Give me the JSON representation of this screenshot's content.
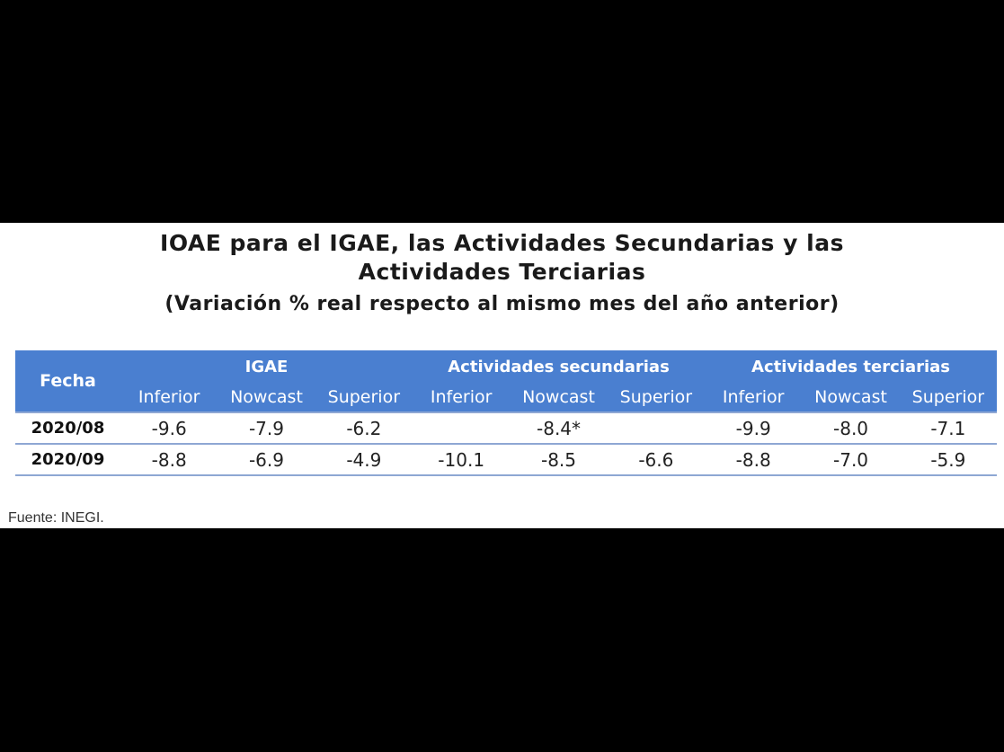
{
  "title": {
    "line1": "IOAE para el IGAE, las Actividades Secundarias y las",
    "line2": "Actividades Terciarias",
    "subtitle": "(Variación % real respecto al mismo mes del año anterior)"
  },
  "table": {
    "date_header": "Fecha",
    "groups": [
      "IGAE",
      "Actividades secundarias",
      "Actividades terciarias"
    ],
    "subcolumns": [
      "Inferior",
      "Nowcast",
      "Superior",
      "Inferior",
      "Nowcast",
      "Superior",
      "Inferior",
      "Nowcast",
      "Superior"
    ],
    "rows": [
      {
        "date": "2020/08",
        "igae": [
          "-9.6",
          "-7.9",
          "-6.2"
        ],
        "secundarias_combined": "-8.4*",
        "terciarias": [
          "-9.9",
          "-8.0",
          "-7.1"
        ]
      },
      {
        "date": "2020/09",
        "igae": [
          "-8.8",
          "-6.9",
          "-4.9"
        ],
        "secundarias": [
          "-10.1",
          "-8.5",
          "-6.6"
        ],
        "terciarias": [
          "-8.8",
          "-7.0",
          "-5.9"
        ]
      }
    ]
  },
  "source": "Fuente: INEGI.",
  "colors": {
    "header_bg": "#4a7fd0",
    "row_border": "#8ea7d3",
    "outer_bg": "#000000"
  }
}
